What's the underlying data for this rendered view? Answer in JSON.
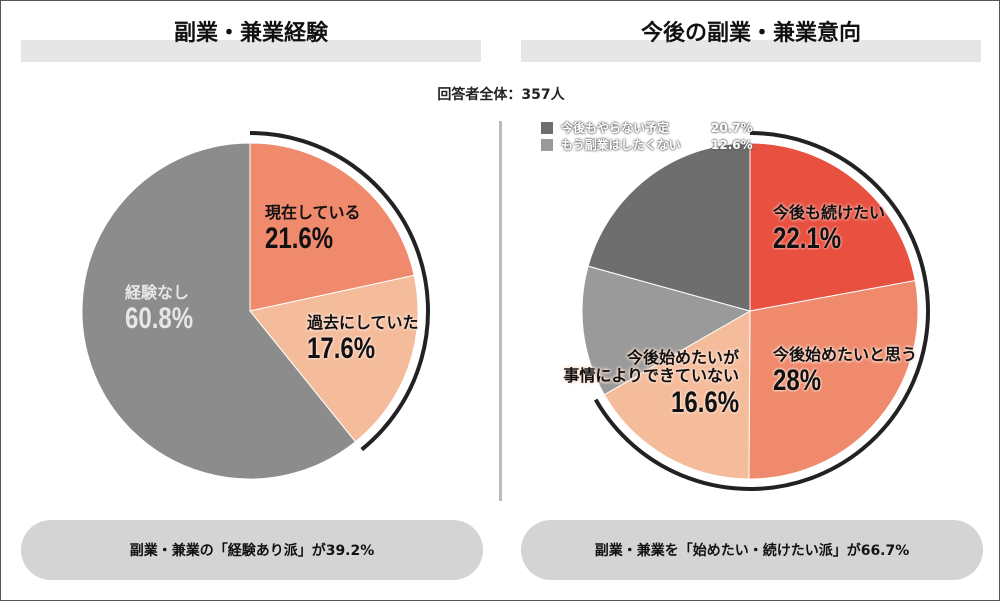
{
  "total_label": "回答者全体：357人",
  "chart_data": [
    {
      "type": "pie",
      "title": "副業・兼業経験",
      "slices": [
        {
          "label": "現在している",
          "value": 21.6,
          "color": "#ef8a6c"
        },
        {
          "label": "過去にしていた",
          "value": 17.6,
          "color": "#f5bc9c"
        },
        {
          "label": "経験なし",
          "value": 60.8,
          "color": "#8c8c8c"
        }
      ],
      "highlight_arc_percent": 39.2,
      "summary": "副業・兼業の「経験あり派」が39.2%"
    },
    {
      "type": "pie",
      "title": "今後の副業・兼業意向",
      "slices": [
        {
          "label": "今後も続けたい",
          "value": 22.1,
          "color": "#e85040"
        },
        {
          "label": "今後始めたいと思う",
          "value": 28.0,
          "color": "#ef8a6c"
        },
        {
          "label": "今後始めたいが事情によりできていない",
          "label_line1": "今後始めたいが",
          "label_line2": "事情によりできていない",
          "value": 16.6,
          "color": "#f5bc9c"
        },
        {
          "label": "もう副業はしたくない",
          "value": 12.6,
          "color": "#9a9a9a"
        },
        {
          "label": "今後もやらない予定",
          "value": 20.7,
          "color": "#6e6e6e"
        }
      ],
      "highlight_arc_percent": 66.7,
      "summary": "副業・兼業を「始めたい・続けたい派」が66.7%"
    }
  ]
}
